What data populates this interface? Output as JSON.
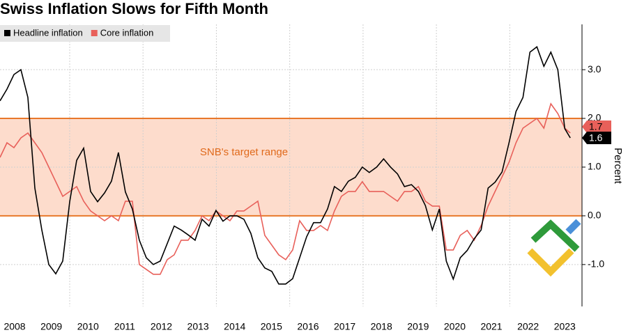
{
  "chart_data": {
    "type": "line",
    "title": "Swiss Inflation Slows for Fifth Month",
    "y_axis_label": "Percent",
    "annotation": "SNB's target range",
    "target_range": [
      0,
      2
    ],
    "legend": "top-left",
    "xlim": [
      2008.1,
      2023.97
    ],
    "ylim": [
      -1.86,
      3.93
    ],
    "xticks": [
      {
        "value": 2008.5,
        "label": "2008"
      },
      {
        "value": 2009.5,
        "label": "2009"
      },
      {
        "value": 2010.5,
        "label": "2010"
      },
      {
        "value": 2011.5,
        "label": "2011"
      },
      {
        "value": 2012.5,
        "label": "2012"
      },
      {
        "value": 2013.5,
        "label": "2013"
      },
      {
        "value": 2014.5,
        "label": "2014"
      },
      {
        "value": 2015.5,
        "label": "2015"
      },
      {
        "value": 2016.5,
        "label": "2016"
      },
      {
        "value": 2017.5,
        "label": "2017"
      },
      {
        "value": 2018.5,
        "label": "2018"
      },
      {
        "value": 2019.5,
        "label": "2019"
      },
      {
        "value": 2020.5,
        "label": "2020"
      },
      {
        "value": 2021.5,
        "label": "2021"
      },
      {
        "value": 2022.5,
        "label": "2022"
      },
      {
        "value": 2023.5,
        "label": "2023"
      }
    ],
    "xgrid": [
      2010,
      2012,
      2014,
      2016,
      2018,
      2020,
      2022
    ],
    "yticks": [
      {
        "value": -1,
        "label": "-1.0"
      },
      {
        "value": 0,
        "label": "0.0"
      },
      {
        "value": 1,
        "label": "1.0"
      },
      {
        "value": 2,
        "label": "2.0"
      },
      {
        "value": 3,
        "label": "3.0"
      }
    ],
    "grid": true,
    "x": [
      2008.1,
      2008.29,
      2008.48,
      2008.67,
      2008.86,
      2009.05,
      2009.24,
      2009.43,
      2009.62,
      2009.81,
      2010.0,
      2010.19,
      2010.38,
      2010.57,
      2010.76,
      2010.95,
      2011.14,
      2011.33,
      2011.52,
      2011.71,
      2011.9,
      2012.09,
      2012.28,
      2012.47,
      2012.66,
      2012.85,
      2013.04,
      2013.23,
      2013.42,
      2013.61,
      2013.8,
      2013.99,
      2014.18,
      2014.37,
      2014.56,
      2014.75,
      2014.94,
      2015.13,
      2015.32,
      2015.51,
      2015.7,
      2015.89,
      2016.08,
      2016.27,
      2016.46,
      2016.65,
      2016.84,
      2017.03,
      2017.22,
      2017.41,
      2017.6,
      2017.79,
      2017.98,
      2018.17,
      2018.37,
      2018.56,
      2018.75,
      2018.94,
      2019.13,
      2019.32,
      2019.51,
      2019.7,
      2019.89,
      2020.08,
      2020.27,
      2020.46,
      2020.65,
      2020.84,
      2021.03,
      2021.22,
      2021.41,
      2021.6,
      2021.79,
      2021.98,
      2022.17,
      2022.36,
      2022.55,
      2022.74,
      2022.93,
      2023.12,
      2023.31,
      2023.5,
      2023.65
    ],
    "series": [
      {
        "name": "Headline inflation",
        "color": "#000000",
        "last_label": "1.6",
        "values": [
          2.36,
          2.6,
          2.9,
          3.0,
          2.43,
          0.57,
          -0.29,
          -1.0,
          -1.19,
          -0.93,
          0.29,
          1.14,
          1.39,
          0.5,
          0.29,
          0.47,
          0.71,
          1.3,
          0.49,
          0.14,
          -0.5,
          -0.86,
          -1.0,
          -0.93,
          -0.57,
          -0.21,
          -0.29,
          -0.39,
          -0.5,
          -0.07,
          -0.21,
          0.11,
          -0.11,
          0.0,
          0.0,
          -0.07,
          -0.36,
          -0.86,
          -1.07,
          -1.14,
          -1.4,
          -1.4,
          -1.29,
          -0.86,
          -0.43,
          -0.14,
          -0.14,
          0.14,
          0.6,
          0.5,
          0.71,
          0.79,
          1.0,
          0.89,
          1.0,
          1.17,
          1.0,
          0.86,
          0.6,
          0.64,
          0.5,
          0.21,
          -0.29,
          0.14,
          -0.93,
          -1.3,
          -0.86,
          -0.71,
          -0.47,
          -0.29,
          0.57,
          0.69,
          0.9,
          1.5,
          2.14,
          2.43,
          3.36,
          3.47,
          3.07,
          3.36,
          3.0,
          1.79,
          1.6
        ]
      },
      {
        "name": "Core inflation",
        "color": "#e8605a",
        "last_label": "1.7",
        "values": [
          1.2,
          1.5,
          1.4,
          1.6,
          1.7,
          1.5,
          1.3,
          1.0,
          0.7,
          0.4,
          0.5,
          0.6,
          0.3,
          0.1,
          0.0,
          -0.1,
          0.0,
          -0.1,
          0.3,
          0.3,
          -1.0,
          -1.1,
          -1.2,
          -1.2,
          -0.9,
          -0.8,
          -0.5,
          -0.5,
          -0.3,
          0.0,
          -0.1,
          0.1,
          0.0,
          -0.1,
          0.1,
          0.1,
          0.2,
          0.3,
          -0.4,
          -0.6,
          -0.8,
          -0.9,
          -0.7,
          -0.1,
          -0.3,
          -0.3,
          -0.2,
          -0.3,
          0.1,
          0.4,
          0.5,
          0.5,
          0.7,
          0.5,
          0.5,
          0.5,
          0.4,
          0.3,
          0.5,
          0.5,
          0.6,
          0.3,
          0.2,
          0.2,
          -0.7,
          -0.7,
          -0.4,
          -0.3,
          -0.5,
          -0.2,
          0.2,
          0.5,
          0.8,
          1.1,
          1.5,
          1.8,
          1.9,
          2.0,
          1.8,
          2.3,
          2.1,
          1.8,
          1.7
        ]
      }
    ]
  }
}
